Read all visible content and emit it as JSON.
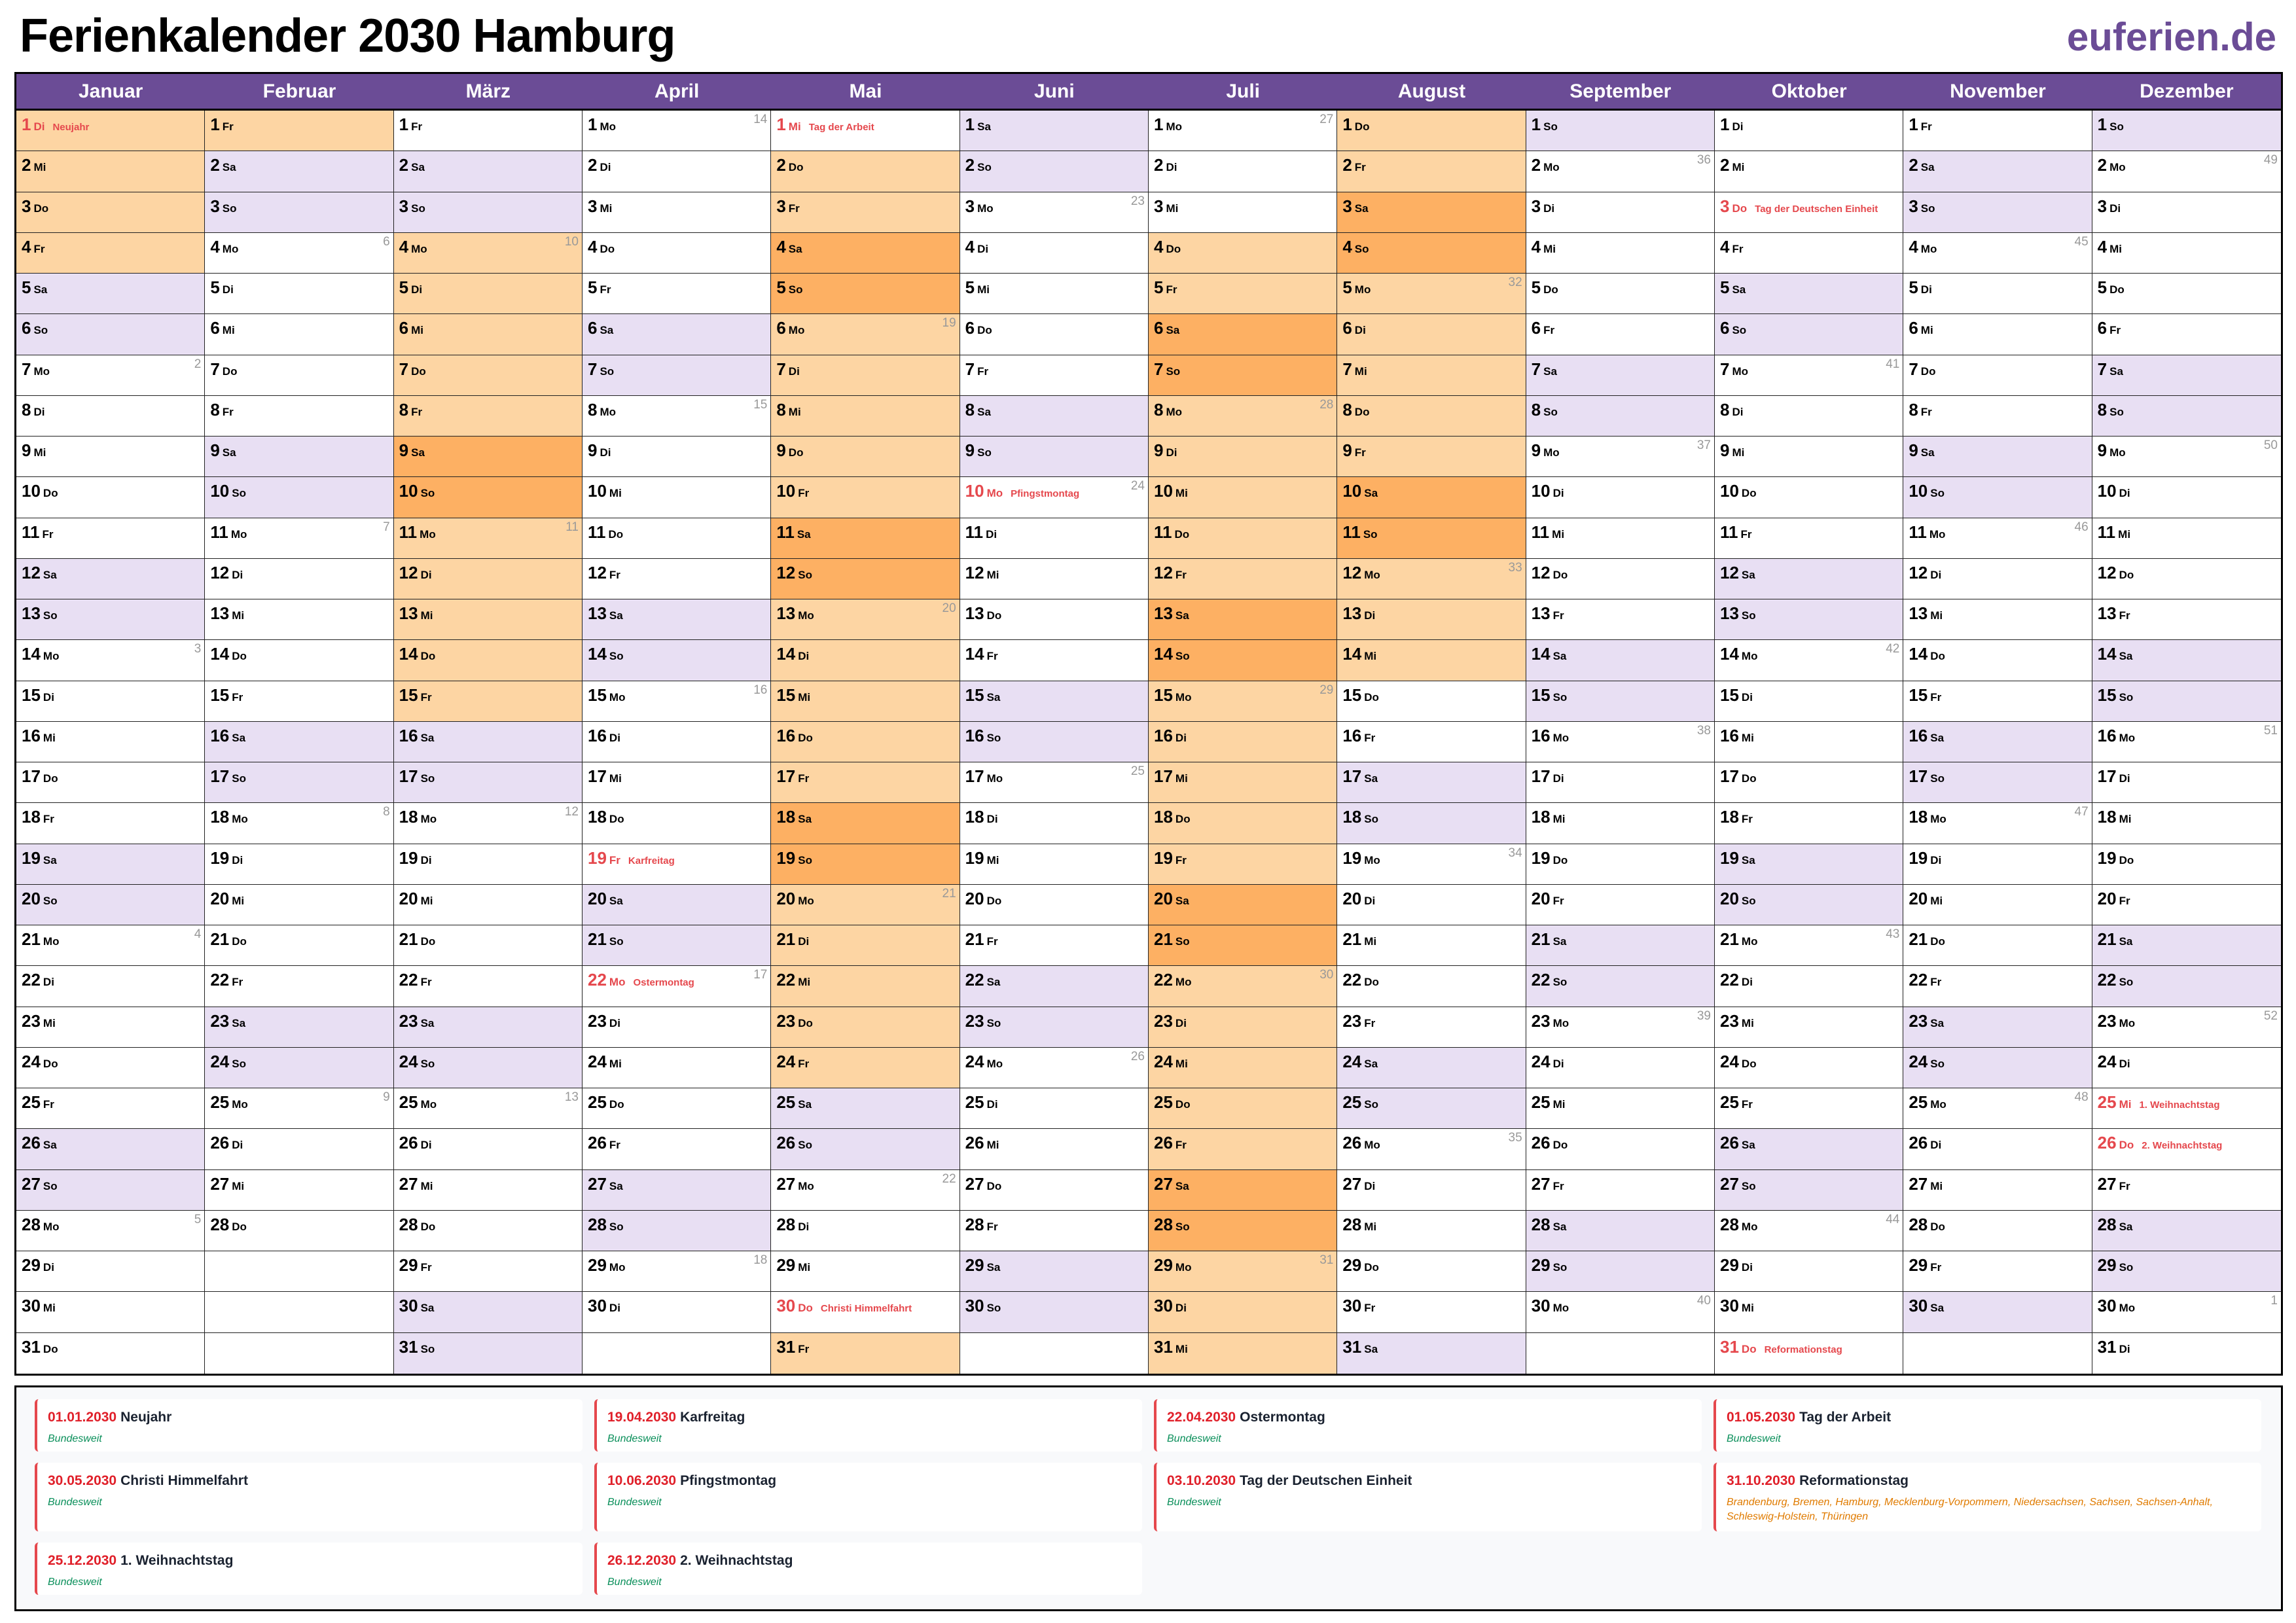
{
  "title": "Ferienkalender 2030 Hamburg",
  "brand": "euferien.de",
  "year": 2030,
  "colors": {
    "header": "#6b4c96",
    "weekend": "#e8dff3",
    "ferien": "#fdd5a3",
    "ferien_weekend": "#fdb063",
    "holiday_text": "#e5484d",
    "nationwide": "#0a8f5a",
    "regional": "#e07b00"
  },
  "weekdays": [
    "So",
    "Mo",
    "Di",
    "Mi",
    "Do",
    "Fr",
    "Sa"
  ],
  "months": [
    {
      "name": "Januar",
      "days": 31
    },
    {
      "name": "Februar",
      "days": 28
    },
    {
      "name": "März",
      "days": 31
    },
    {
      "name": "April",
      "days": 30
    },
    {
      "name": "Mai",
      "days": 31
    },
    {
      "name": "Juni",
      "days": 30
    },
    {
      "name": "Juli",
      "days": 31
    },
    {
      "name": "August",
      "days": 31
    },
    {
      "name": "September",
      "days": 30
    },
    {
      "name": "Oktober",
      "days": 31
    },
    {
      "name": "November",
      "days": 30
    },
    {
      "name": "Dezember",
      "days": 31
    }
  ],
  "ferien": [
    [
      "01-01",
      "01-04"
    ],
    [
      "02-01",
      "02-01"
    ],
    [
      "03-04",
      "03-15"
    ],
    [
      "05-02",
      "05-24"
    ],
    [
      "05-31",
      "05-31"
    ],
    [
      "07-04",
      "08-14"
    ]
  ],
  "cell_holidays": {
    "01-01": "Neujahr",
    "04-19": "Karfreitag",
    "04-22": "Ostermontag",
    "05-01": "Tag der Arbeit",
    "05-30": "Christi Himmelfahrt",
    "06-10": "Pfingstmontag",
    "10-03": "Tag der Deutschen Einheit",
    "10-31": "Reformationstag",
    "12-25": "1. Weihnachtstag",
    "12-26": "2. Weihnachtstag"
  },
  "legend": [
    {
      "date": "01.01.2030",
      "name": "Neujahr",
      "scope": "Bundesweit",
      "type": "nationwide"
    },
    {
      "date": "19.04.2030",
      "name": "Karfreitag",
      "scope": "Bundesweit",
      "type": "nationwide"
    },
    {
      "date": "22.04.2030",
      "name": "Ostermontag",
      "scope": "Bundesweit",
      "type": "nationwide"
    },
    {
      "date": "01.05.2030",
      "name": "Tag der Arbeit",
      "scope": "Bundesweit",
      "type": "nationwide"
    },
    {
      "date": "30.05.2030",
      "name": "Christi Himmelfahrt",
      "scope": "Bundesweit",
      "type": "nationwide"
    },
    {
      "date": "10.06.2030",
      "name": "Pfingstmontag",
      "scope": "Bundesweit",
      "type": "nationwide"
    },
    {
      "date": "03.10.2030",
      "name": "Tag der Deutschen Einheit",
      "scope": "Bundesweit",
      "type": "nationwide"
    },
    {
      "date": "31.10.2030",
      "name": "Reformationstag",
      "scope": "Brandenburg, Bremen, Hamburg, Mecklenburg-Vorpommern, Niedersachsen, Sachsen, Sachsen-Anhalt, Schleswig-Holstein, Thüringen",
      "type": "regional"
    },
    {
      "date": "25.12.2030",
      "name": "1. Weihnachtstag",
      "scope": "Bundesweit",
      "type": "nationwide"
    },
    {
      "date": "26.12.2030",
      "name": "2. Weihnachtstag",
      "scope": "Bundesweit",
      "type": "nationwide"
    }
  ]
}
